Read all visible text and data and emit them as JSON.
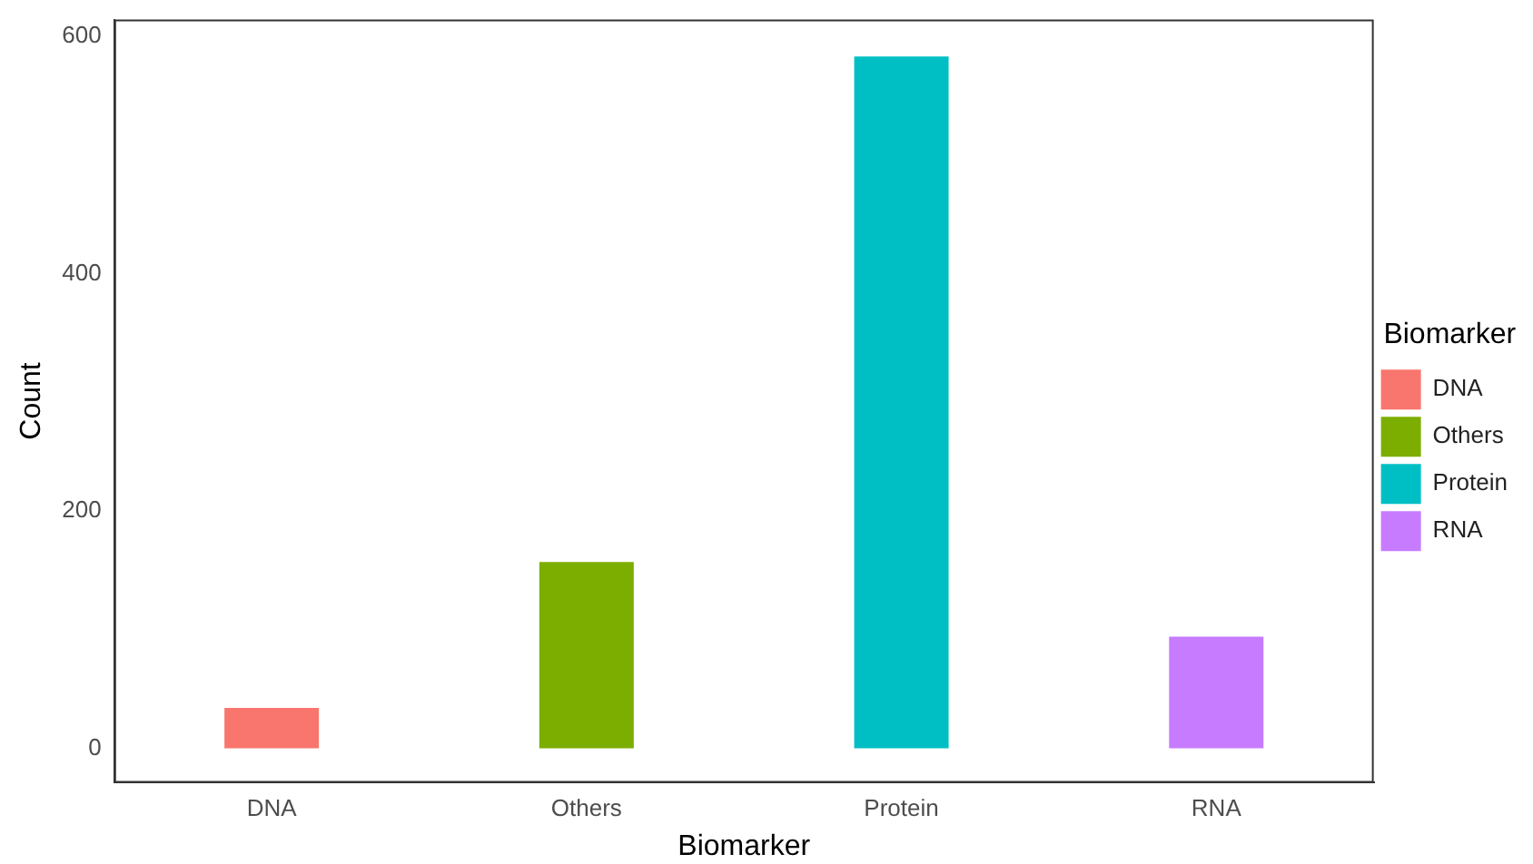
{
  "chart_data": {
    "type": "bar",
    "xlabel": "Biomarker",
    "ylabel": "Count",
    "legend_title": "Biomarker",
    "categories": [
      "DNA",
      "Others",
      "Protein",
      "RNA"
    ],
    "series": [
      {
        "name": "DNA",
        "color": "#f8766d",
        "values": [
          34,
          null,
          null,
          null
        ]
      },
      {
        "name": "Others",
        "color": "#7cae00",
        "values": [
          null,
          157,
          null,
          null
        ]
      },
      {
        "name": "Protein",
        "color": "#00bfc4",
        "values": [
          null,
          null,
          583,
          null
        ]
      },
      {
        "name": "RNA",
        "color": "#c77cff",
        "values": [
          null,
          null,
          null,
          94
        ]
      }
    ],
    "ylim": [
      -29,
      614
    ],
    "yticks": [
      0,
      200,
      400,
      600
    ],
    "grid": false,
    "legend": "right"
  }
}
